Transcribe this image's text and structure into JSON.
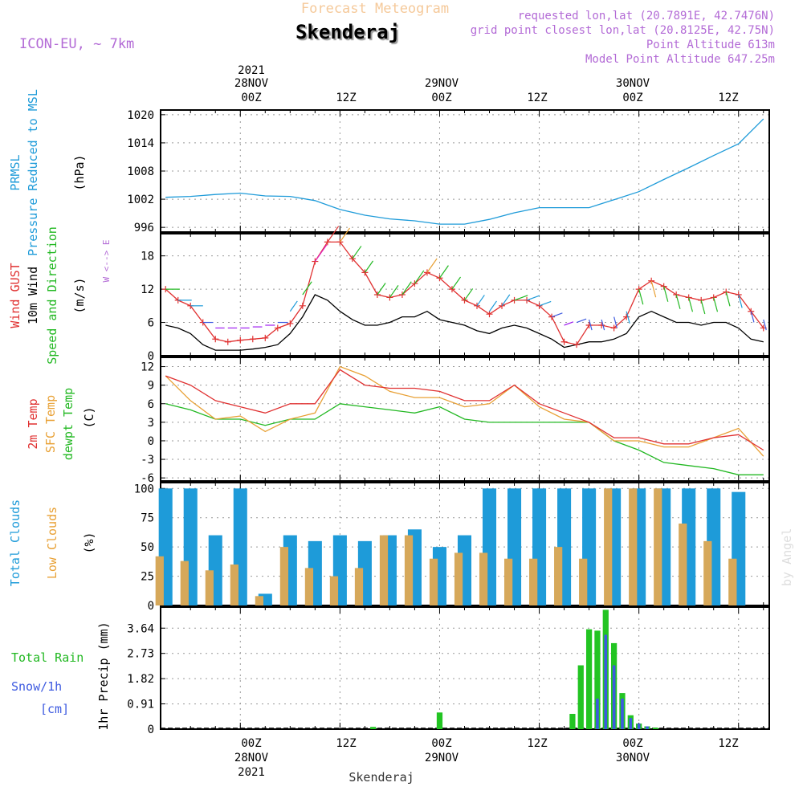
{
  "header": {
    "subtitle": "Forecast Meteogram",
    "title": "Skenderaj",
    "model": "ICON-EU, ~ 7km",
    "requested": "requested lon,lat (20.7891E, 42.7476N)",
    "gridpoint": "grid point closest lon,lat (20.8125E, 42.75N)",
    "point_altitude": "Point Altitude 613m",
    "model_altitude": "Model Point Altitude 647.25m"
  },
  "time_axis": {
    "year": "2021",
    "dates": [
      "28NOV",
      "29NOV",
      "30NOV"
    ],
    "hours": [
      "00Z",
      "12Z"
    ]
  },
  "footer": {
    "location": "Skenderaj",
    "watermark": "by Angel"
  },
  "colors": {
    "pressure": "#1e9bd9",
    "gust": "#e03131",
    "wind10m": "#000000",
    "temp2m": "#e03131",
    "sfc": "#e8a034",
    "dewpt": "#22b822",
    "total_clouds": "#1e9bd9",
    "low_clouds": "#d6a85a",
    "rain": "#22c422",
    "snow": "#3d5ae0"
  },
  "panels": {
    "pressure": {
      "labels": [
        "PRMSL",
        "Pressure Reduced to MSL",
        "(hPa)"
      ]
    },
    "wind": {
      "labels": [
        "Wind GUST",
        "10m Wind",
        "Speed and Direction",
        "(m/s)"
      ],
      "compass": "W <--> E"
    },
    "temperature": {
      "labels": [
        "2m Temp",
        "SFC Temp",
        "dewpt Temp",
        "(C)"
      ]
    },
    "clouds": {
      "labels": [
        "Total Clouds",
        "Low Clouds",
        "(%)"
      ]
    },
    "precip": {
      "labels": [
        "Total  Rain",
        "Snow/1h",
        "[cm]",
        "1hr Precip (mm)"
      ]
    }
  },
  "chart_data": [
    {
      "type": "line",
      "title": "PRMSL Pressure Reduced to MSL",
      "ylabel": "(hPa)",
      "ylim": [
        995,
        1021
      ],
      "yticks": [
        996,
        1002,
        1008,
        1014,
        1020
      ],
      "x": [
        -9,
        -6,
        -3,
        0,
        3,
        6,
        9,
        12,
        15,
        18,
        21,
        24,
        27,
        30,
        33,
        36,
        39,
        42,
        45,
        48,
        51,
        54,
        57,
        60,
        63
      ],
      "series": [
        {
          "name": "PRMSL",
          "values": [
            1002.4,
            1002.6,
            1003.0,
            1003.3,
            1002.7,
            1002.6,
            1001.7,
            999.8,
            998.6,
            997.8,
            997.4,
            996.7,
            996.7,
            997.7,
            999.1,
            1000.2,
            1000.2,
            1000.2,
            1001.9,
            1003.6,
            1006.2,
            1008.7,
            1011.3,
            1013.8,
            1019.1
          ]
        }
      ]
    },
    {
      "type": "line",
      "title": "Wind GUST / 10m Wind Speed and Direction",
      "ylabel": "(m/s)",
      "ylim": [
        0,
        22
      ],
      "yticks": [
        0,
        6,
        12,
        18
      ],
      "x": [
        -9,
        -7.5,
        -6,
        -4.5,
        -3,
        -1.5,
        0,
        1.5,
        3,
        4.5,
        6,
        7.5,
        9,
        10.5,
        12,
        13.5,
        15,
        16.5,
        18,
        19.5,
        21,
        22.5,
        24,
        25.5,
        27,
        28.5,
        30,
        31.5,
        33,
        34.5,
        36,
        37.5,
        39,
        40.5,
        42,
        43.5,
        45,
        46.5,
        48,
        49.5,
        51,
        52.5,
        54,
        55.5,
        57,
        58.5,
        60,
        61.5,
        63
      ],
      "series": [
        {
          "name": "Wind GUST",
          "values": [
            12,
            10,
            9,
            6,
            3,
            2.5,
            2.8,
            3,
            3.2,
            5,
            5.8,
            9,
            17,
            20.5,
            20.5,
            17.5,
            15,
            11,
            10.5,
            11,
            13,
            15,
            14,
            12,
            10,
            9,
            7.5,
            9,
            10,
            10,
            9,
            7,
            2.5,
            2,
            5.5,
            5.5,
            5,
            7,
            12,
            13.5,
            12.5,
            11,
            10.5,
            10,
            10.5,
            11.5,
            11,
            8,
            5
          ]
        },
        {
          "name": "10m Wind",
          "values": [
            5.5,
            5,
            4,
            2,
            1,
            1,
            1,
            1.2,
            1.5,
            2,
            4,
            7,
            11,
            10,
            8,
            6.5,
            5.5,
            5.5,
            6,
            7,
            7,
            8,
            6.5,
            6,
            5.5,
            4.5,
            4,
            5,
            5.5,
            5,
            4,
            3,
            1.5,
            2,
            2.5,
            2.5,
            3,
            4,
            7,
            8,
            7,
            6,
            6,
            5.5,
            6,
            6,
            5,
            3,
            2.5
          ]
        }
      ]
    },
    {
      "type": "line",
      "title": "2m Temp / SFC Temp / dewpt Temp",
      "ylabel": "(C)",
      "ylim": [
        -6.5,
        13.5
      ],
      "yticks": [
        -6,
        -3,
        0,
        3,
        6,
        9,
        12
      ],
      "x": [
        -9,
        -6,
        -3,
        0,
        3,
        6,
        9,
        12,
        15,
        18,
        21,
        24,
        27,
        30,
        33,
        36,
        39,
        42,
        45,
        48,
        51,
        54,
        57,
        60,
        63
      ],
      "series": [
        {
          "name": "2m Temp",
          "values": [
            10.5,
            9,
            6.5,
            5.5,
            4.5,
            6,
            6,
            11.5,
            9,
            8.5,
            8.5,
            8,
            6.5,
            6.5,
            9,
            6,
            4.5,
            3,
            0.5,
            0.5,
            -0.5,
            -0.5,
            0.5,
            1,
            -1.5
          ]
        },
        {
          "name": "SFC Temp",
          "values": [
            10.5,
            6.5,
            3.5,
            4,
            1.5,
            3.5,
            4.5,
            12,
            10.5,
            8,
            7,
            7,
            5.5,
            6,
            9,
            5.5,
            3.5,
            3,
            0,
            0,
            -1,
            -1,
            0.5,
            2,
            -2.5
          ]
        },
        {
          "name": "dewpt Temp",
          "values": [
            6,
            5,
            3.5,
            3.5,
            2.5,
            3.5,
            3.5,
            6,
            5.5,
            5,
            4.5,
            5.5,
            3.5,
            3,
            3,
            3,
            3,
            3,
            0,
            -1.5,
            -3.5,
            -4,
            -4.5,
            -5.5,
            -5.5
          ]
        }
      ]
    },
    {
      "type": "bar",
      "title": "Total Clouds / Low Clouds",
      "ylabel": "(%)",
      "ylim": [
        0,
        105
      ],
      "yticks": [
        0,
        25,
        50,
        75,
        100
      ],
      "x": [
        -9,
        -6,
        -3,
        0,
        3,
        6,
        9,
        12,
        15,
        18,
        21,
        24,
        27,
        30,
        33,
        36,
        39,
        42,
        45,
        48,
        51,
        54,
        57,
        60,
        63
      ],
      "series": [
        {
          "name": "Total Clouds",
          "values": [
            100,
            100,
            60,
            100,
            10,
            60,
            55,
            60,
            55,
            60,
            65,
            50,
            60,
            100,
            100,
            100,
            100,
            100,
            100,
            100,
            100,
            100,
            100,
            97,
            0
          ]
        },
        {
          "name": "Low Clouds",
          "values": [
            42,
            38,
            30,
            35,
            8,
            50,
            32,
            25,
            32,
            60,
            60,
            40,
            45,
            45,
            40,
            40,
            50,
            40,
            100,
            100,
            100,
            70,
            55,
            40,
            0
          ]
        }
      ]
    },
    {
      "type": "bar",
      "title": "Total Rain / Snow",
      "ylabel": "1hr Precip (mm)",
      "ylim": [
        0,
        4.4
      ],
      "yticks": [
        0,
        0.91,
        1.82,
        2.73,
        3.64
      ],
      "x": [
        16,
        24,
        40,
        41,
        42,
        43,
        44,
        45,
        46,
        47,
        48,
        49,
        50,
        51
      ],
      "series": [
        {
          "name": "Total Rain",
          "values": [
            0.08,
            0.6,
            0.55,
            2.3,
            3.6,
            3.55,
            4.3,
            3.1,
            1.3,
            0.5,
            0.2,
            0.1,
            0.05,
            0
          ]
        },
        {
          "name": "Snow/1h",
          "values": [
            0,
            0,
            0,
            0,
            0,
            1.1,
            3.4,
            2.3,
            1.1,
            0.4,
            0.2,
            0.1,
            0,
            0
          ]
        }
      ]
    }
  ]
}
